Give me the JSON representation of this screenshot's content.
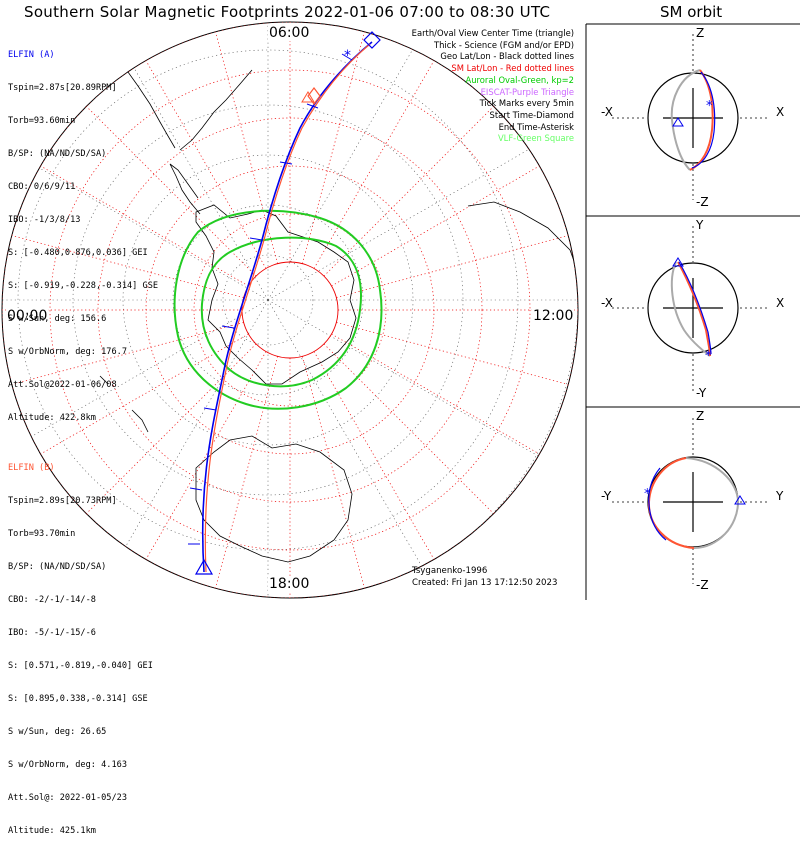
{
  "title": "Southern Solar Magnetic Footprints 2022-01-06 07:00 to 08:30 UTC",
  "orbit_title": "SM orbit",
  "time_labels": {
    "top": "06:00",
    "left": "00:00",
    "right": "12:00",
    "bottom": "18:00"
  },
  "probe_a": {
    "name": "ELFIN (A)",
    "color": "#0000ee",
    "lines": [
      "Tspin=2.87s[20.89RPM]",
      "Torb=93.60min",
      "B/SP: (NA/ND/SD/SA)",
      "CBO: 0/6/9/11",
      "IBO: -1/3/8/13",
      "S: [-0.480,0.876,0.036] GEI",
      "S: [-0.919,-0.228,-0.314] GSE",
      "S w/Sun, deg: 156.6",
      "S w/OrbNorm, deg: 176.7",
      "Att.Sol@2022-01-06/08",
      "Altitude: 422.8km"
    ]
  },
  "probe_b": {
    "name": "ELFIN (B)",
    "color": "#ff5533",
    "lines": [
      "Tspin=2.89s[20.73RPM]",
      "Torb=93.70min",
      "B/SP: (NA/ND/SD/SA)",
      "CBO: -2/-1/-14/-8",
      "IBO: -5/-1/-15/-6",
      "S: [0.571,-0.819,-0.040] GEI",
      "S: [0.895,0.338,-0.314] GSE",
      "S w/Sun, deg: 26.65",
      "S w/OrbNorm, deg: 4.163",
      "Att.Sol@: 2022-01-05/23",
      "Altitude: 425.1km"
    ]
  },
  "legend": [
    {
      "text": "Earth/Oval View Center Time (triangle)",
      "color": "#000000"
    },
    {
      "text": "Thick - Science (FGM and/or EPD)",
      "color": "#000000"
    },
    {
      "text": "Geo Lat/Lon - Black dotted lines",
      "color": "#000000"
    },
    {
      "text": "SM Lat/Lon - Red dotted lines",
      "color": "#ee0000"
    },
    {
      "text": "Auroral Oval-Green, kp=2",
      "color": "#00cc00"
    },
    {
      "text": "EISCAT-Purple Triangle",
      "color": "#cc66ff"
    },
    {
      "text": "Tick Marks every 5min",
      "color": "#000000"
    },
    {
      "text": "Start Time-Diamond",
      "color": "#000000"
    },
    {
      "text": "End Time-Asterisk",
      "color": "#000000"
    },
    {
      "text": "VLF-Green Square",
      "color": "#66ff66"
    }
  ],
  "credits": {
    "author": "Tsyganenko-1996",
    "created": "Created: Fri Jan 13 17:12:50 2023"
  },
  "orbit_panels": [
    {
      "top": "Z",
      "bottom": "-Z",
      "left": "-X",
      "right": "X"
    },
    {
      "top": "Y",
      "bottom": "-Y",
      "left": "-X",
      "right": "X"
    },
    {
      "top": "Z",
      "bottom": "-Z",
      "left": "-Y",
      "right": "Y"
    }
  ],
  "colors": {
    "grid_red": "#ee0000",
    "oval_green": "#22cc22",
    "probe_a": "#0000ee",
    "probe_b": "#ff5533",
    "orbit_gray": "#aaaaaa"
  }
}
